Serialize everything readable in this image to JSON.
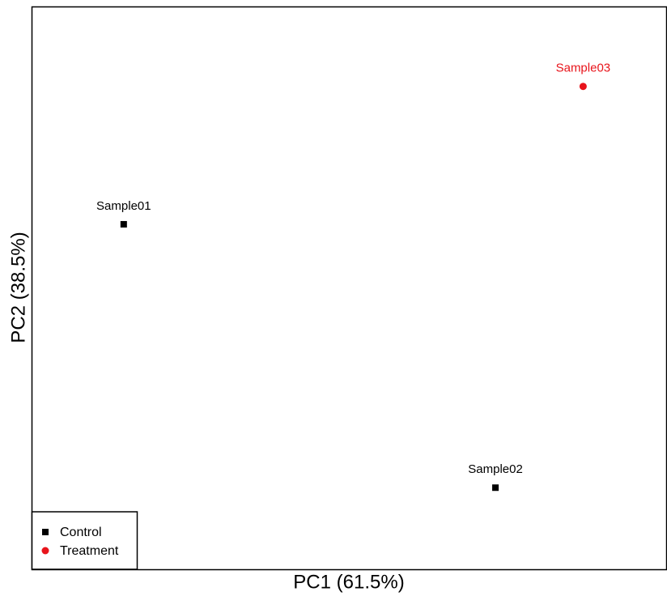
{
  "chart_data": {
    "type": "scatter",
    "x_label": "PC1 (61.5%)",
    "y_label": "PC2 (38.5%)",
    "xlim": [
      0,
      100
    ],
    "ylim": [
      0,
      100
    ],
    "legend_position": "bottom-left",
    "series": [
      {
        "name": "Control",
        "color": "#000000",
        "marker": "square",
        "labels": [
          "Sample01",
          "Sample02"
        ],
        "x": [
          14.5,
          73.0
        ],
        "values": [
          61.3,
          14.5
        ]
      },
      {
        "name": "Treatment",
        "color": "#e8141b",
        "marker": "circle",
        "labels": [
          "Sample03"
        ],
        "x": [
          86.8
        ],
        "values": [
          85.8
        ]
      }
    ]
  }
}
